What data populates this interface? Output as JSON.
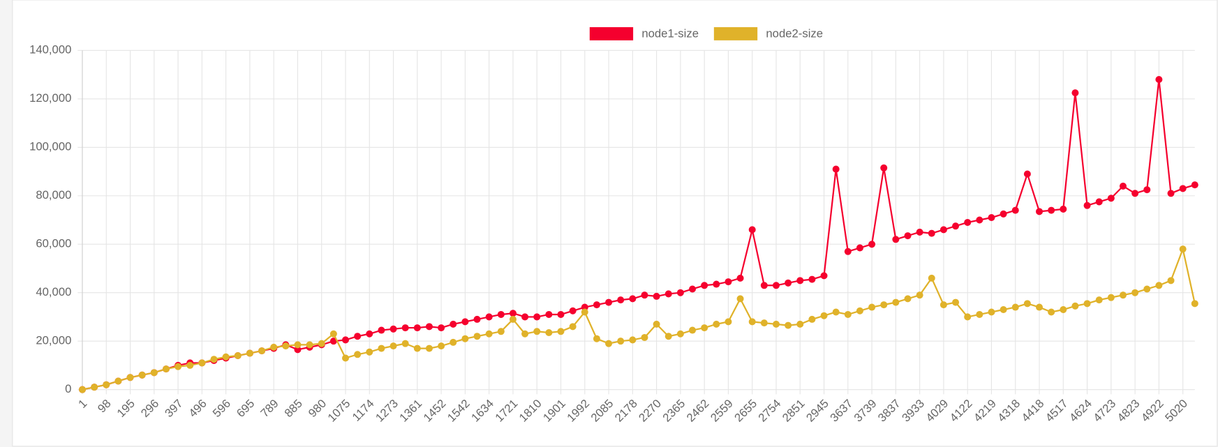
{
  "chart_data": {
    "type": "line",
    "legend": "top",
    "grid": true,
    "categories": [
      "1",
      null,
      "98",
      null,
      "195",
      null,
      "296",
      null,
      "397",
      null,
      "496",
      null,
      "596",
      null,
      "695",
      null,
      "789",
      null,
      "885",
      null,
      "980",
      null,
      "1075",
      null,
      "1174",
      null,
      "1273",
      null,
      "1361",
      null,
      "1452",
      null,
      "1542",
      null,
      "1634",
      null,
      "1721",
      null,
      "1810",
      null,
      "1901",
      null,
      "1992",
      null,
      "2085",
      null,
      "2178",
      null,
      "2270",
      null,
      "2365",
      null,
      "2462",
      null,
      "2559",
      null,
      "2655",
      null,
      "2754",
      null,
      "2851",
      null,
      "2945",
      null,
      "3637",
      null,
      "3739",
      null,
      "3837",
      null,
      "3933",
      null,
      "4029",
      null,
      "4122",
      null,
      "4219",
      null,
      "4318",
      null,
      "4418",
      null,
      "4517",
      null,
      "4624",
      null,
      "4723",
      null,
      "4823",
      null,
      "4922",
      null,
      "5020",
      null
    ],
    "series": [
      {
        "name": "node1-size",
        "color": "#f5002e",
        "values": [
          0,
          1000,
          2000,
          3500,
          5000,
          6000,
          7000,
          8500,
          10000,
          11000,
          11000,
          12000,
          13000,
          14000,
          15000,
          16000,
          17000,
          18500,
          16500,
          17500,
          18500,
          20000,
          20500,
          22000,
          23000,
          24500,
          25000,
          25500,
          25500,
          26000,
          25500,
          27000,
          28000,
          29000,
          30000,
          31000,
          31500,
          30000,
          30000,
          31000,
          31000,
          32500,
          34000,
          35000,
          36000,
          37000,
          37500,
          39000,
          38500,
          39500,
          40000,
          41500,
          43000,
          43500,
          44500,
          46000,
          66000,
          43000,
          43000,
          44000,
          45000,
          45500,
          47000,
          91000,
          57000,
          58500,
          60000,
          91500,
          62000,
          63500,
          65000,
          64500,
          66000,
          67500,
          69000,
          70000,
          71000,
          72500,
          74000,
          89000,
          73500,
          74000,
          74500,
          122500,
          76000,
          77500,
          79000,
          84000,
          81000,
          82500,
          128000,
          81000,
          83000,
          84500
        ]
      },
      {
        "name": "node2-size",
        "color": "#e0b22a",
        "values": [
          0,
          1000,
          2000,
          3500,
          5000,
          6000,
          7000,
          8500,
          9500,
          10000,
          11000,
          12500,
          13500,
          14000,
          15000,
          16000,
          17500,
          18000,
          18500,
          18500,
          19000,
          23000,
          13000,
          14500,
          15500,
          17000,
          18000,
          19000,
          17000,
          17000,
          18000,
          19500,
          21000,
          22000,
          23000,
          24000,
          29000,
          23000,
          24000,
          23500,
          24000,
          26000,
          32000,
          21000,
          19000,
          20000,
          20500,
          21500,
          27000,
          22000,
          23000,
          24500,
          25500,
          27000,
          28000,
          37500,
          28000,
          27500,
          27000,
          26500,
          27000,
          29000,
          30500,
          32000,
          31000,
          32500,
          34000,
          35000,
          36000,
          37500,
          39000,
          46000,
          35000,
          36000,
          30000,
          31000,
          32000,
          33000,
          34000,
          35500,
          34000,
          32000,
          33000,
          34500,
          35500,
          37000,
          38000,
          39000,
          40000,
          41500,
          43000,
          45000,
          58000,
          35500
        ]
      }
    ],
    "ylim": [
      0,
      140000
    ],
    "yticks": [
      0,
      {
        "value": 20000,
        "label": "20,000"
      },
      {
        "value": 40000,
        "label": "40,000"
      },
      {
        "value": 60000,
        "label": "60,000"
      },
      {
        "value": 80000,
        "label": "80,000"
      },
      {
        "value": 100000,
        "label": "100,000"
      },
      {
        "value": 120000,
        "label": "120,000"
      },
      {
        "value": 140000,
        "label": "140,000"
      }
    ]
  }
}
